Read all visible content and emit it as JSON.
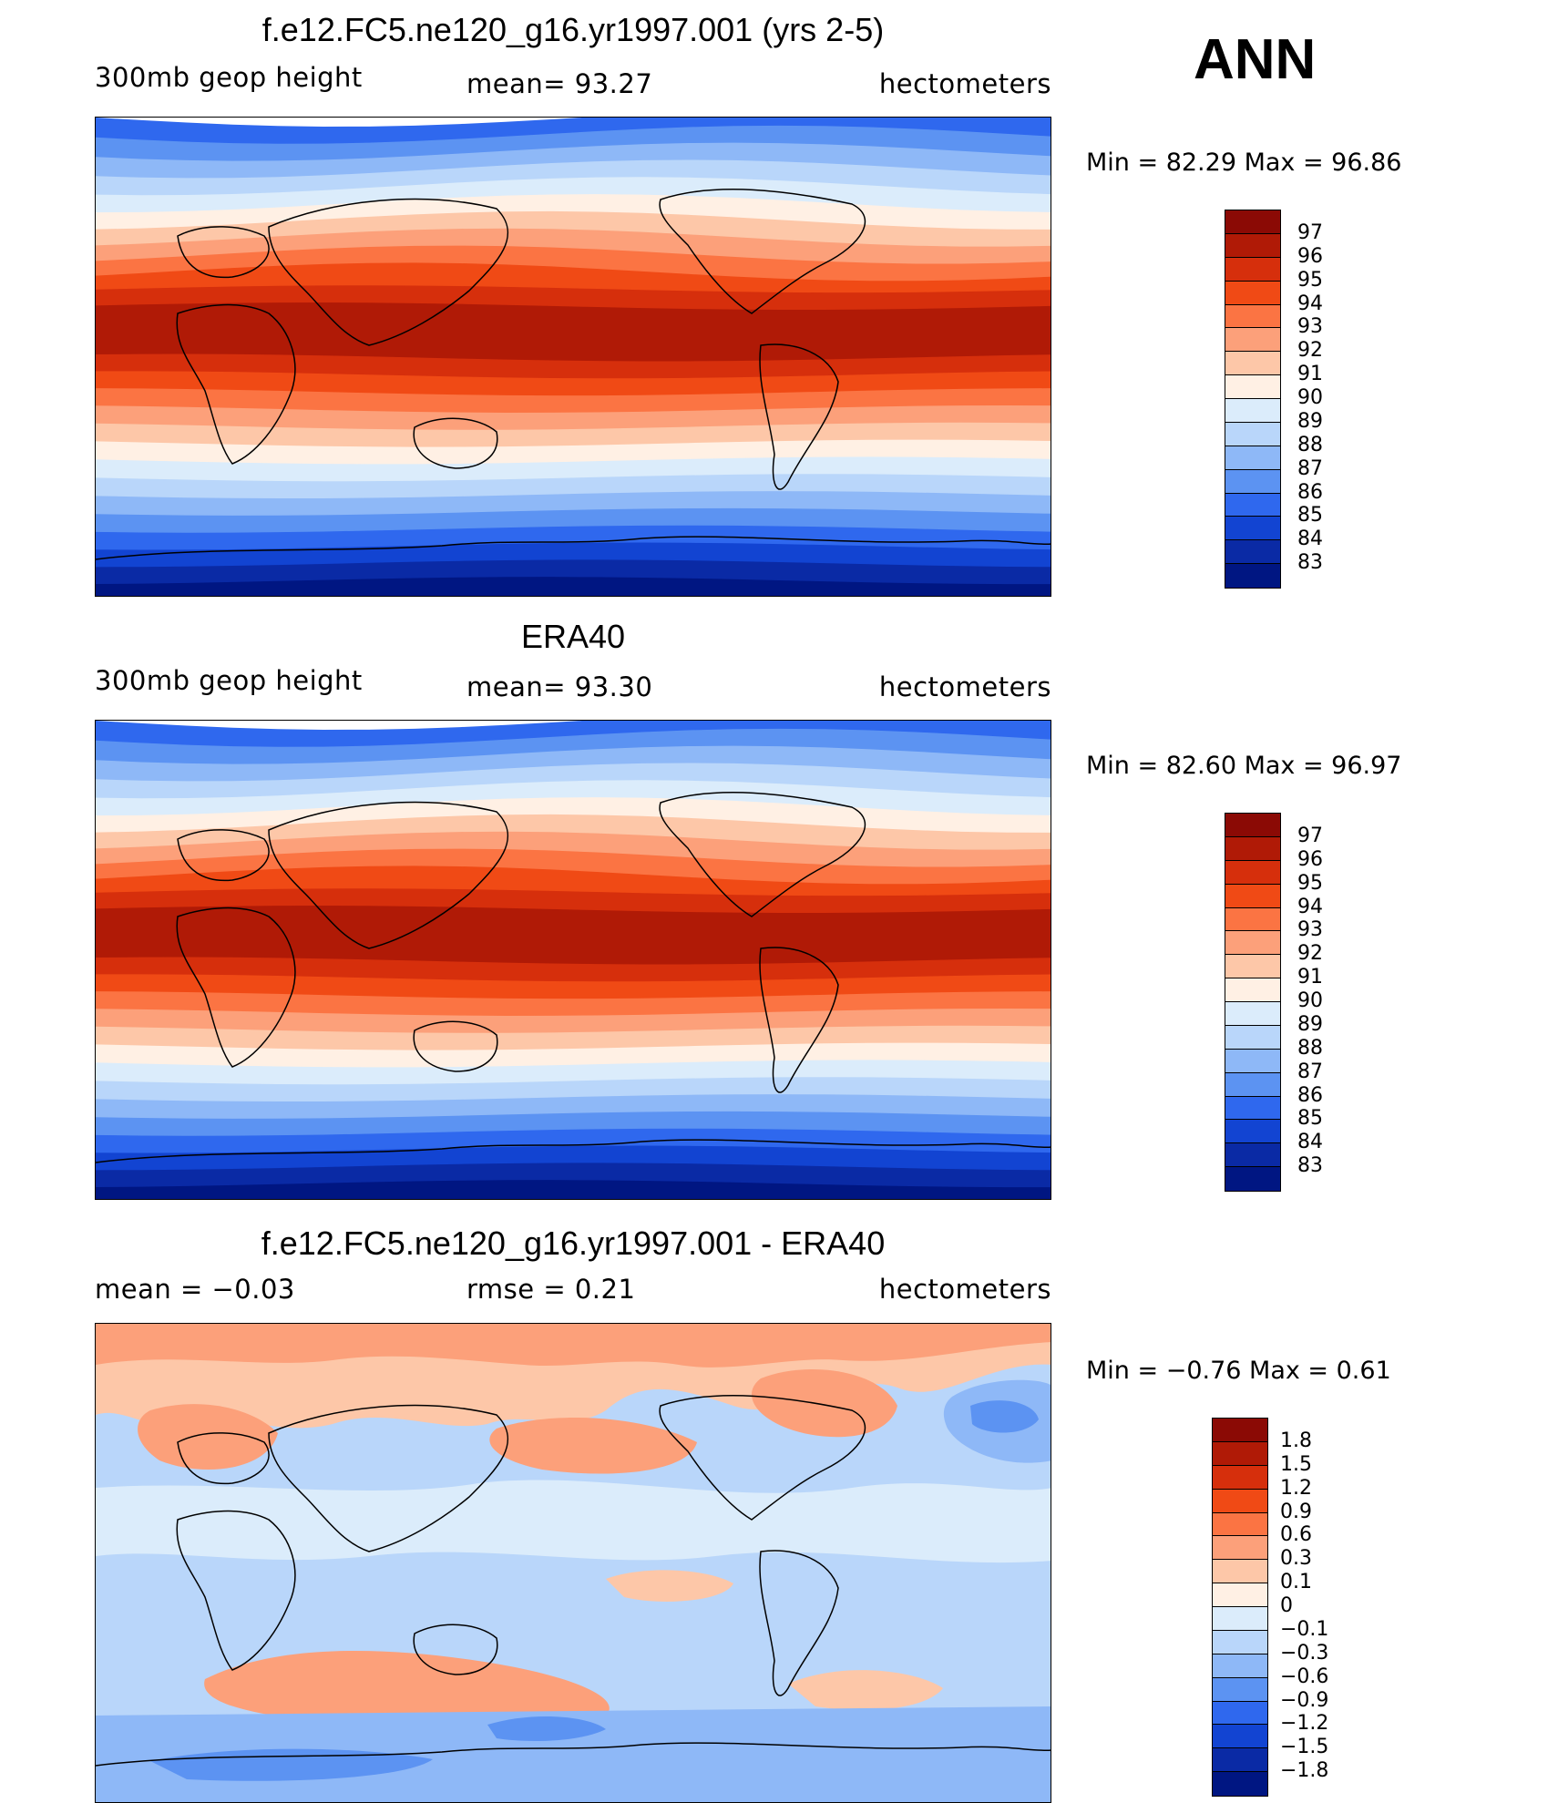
{
  "season": "ANN",
  "panels": [
    {
      "id": "model",
      "title": "f.e12.FC5.ne120_g16.yr1997.001 (yrs 2-5)",
      "left_header": "300mb  geop  height",
      "center_header": "mean=   93.27",
      "right_header": "hectometers",
      "minmax": "Min  =    82.29  Max  =    96.86"
    },
    {
      "id": "obs",
      "title": "ERA40",
      "left_header": "300mb  geop  height",
      "center_header": "mean=   93.30",
      "right_header": "hectometers",
      "minmax": "Min  =    82.60  Max  =    96.97"
    },
    {
      "id": "diff",
      "title": "f.e12.FC5.ne120_g16.yr1997.001 - ERA40",
      "left_header": "mean  =    −0.03",
      "center_header": "rmse  =     0.21",
      "right_header": "hectometers",
      "minmax": "Min  =    −0.76  Max  =      0.61"
    }
  ],
  "field_colorbar": {
    "labels": [
      "97",
      "96",
      "95",
      "94",
      "93",
      "92",
      "91",
      "90",
      "89",
      "88",
      "87",
      "86",
      "85",
      "84",
      "83"
    ],
    "colors": [
      "#8b0a05",
      "#b01a06",
      "#d62f0c",
      "#f04a15",
      "#fb7443",
      "#fca07a",
      "#fdc7a8",
      "#fff0e4",
      "#dbecfb",
      "#b9d6fa",
      "#8eb8f7",
      "#5c93f2",
      "#2f68ee",
      "#1244d2",
      "#0a2aa5",
      "#001682"
    ]
  },
  "diff_colorbar": {
    "labels": [
      "1.8",
      "1.5",
      "1.2",
      "0.9",
      "0.6",
      "0.3",
      "0.1",
      "0",
      "−0.1",
      "−0.3",
      "−0.6",
      "−0.9",
      "−1.2",
      "−1.5",
      "−1.8"
    ],
    "colors": [
      "#8b0a05",
      "#b01a06",
      "#d62f0c",
      "#f04a15",
      "#fb7443",
      "#fca07a",
      "#fdc7a8",
      "#fff0e4",
      "#dbecfb",
      "#b9d6fa",
      "#8eb8f7",
      "#5c93f2",
      "#2f68ee",
      "#1244d2",
      "#0a2aa5",
      "#001682"
    ]
  },
  "map_field": {
    "bands_top_to_bottom": [
      "#2f68ee",
      "#5c93f2",
      "#8eb8f7",
      "#b9d6fa",
      "#dbecfb",
      "#fff0e4",
      "#fdc7a8",
      "#fca07a",
      "#fb7443",
      "#f04a15",
      "#d62f0c",
      "#b01a06",
      "#b01a06",
      "#b01a06",
      "#d62f0c",
      "#f04a15",
      "#fb7443",
      "#fca07a",
      "#fdc7a8",
      "#fff0e4",
      "#dbecfb",
      "#b9d6fa",
      "#8eb8f7",
      "#5c93f2",
      "#2f68ee",
      "#1244d2",
      "#0a2aa5",
      "#001682"
    ]
  },
  "map_diff": {
    "background": "#b9d6fa"
  }
}
